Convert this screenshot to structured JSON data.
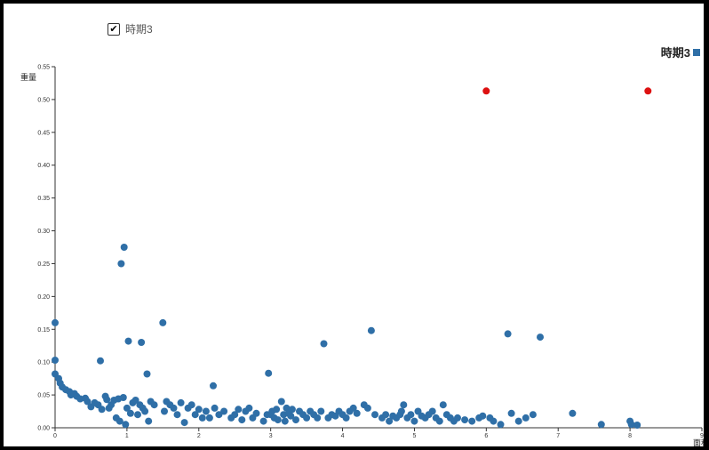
{
  "toggle": {
    "label": "時期3",
    "checked": true
  },
  "legend": {
    "label": "時期3"
  },
  "chart_data": {
    "type": "scatter",
    "ylabel": "重量",
    "xlabel": "面积",
    "xlim": [
      0,
      9
    ],
    "ylim": [
      0,
      0.55
    ],
    "x_ticks": [
      "0",
      "1",
      "2",
      "3",
      "4",
      "5",
      "6",
      "7",
      "8",
      "9"
    ],
    "y_ticks": [
      "0.00",
      "0.05",
      "0.10",
      "0.15",
      "0.20",
      "0.25",
      "0.30",
      "0.35",
      "0.40",
      "0.45",
      "0.50",
      "0.55"
    ],
    "series": [
      {
        "name": "時期3",
        "color": "#2f6fa7",
        "points": [
          [
            0.0,
            0.16
          ],
          [
            0.0,
            0.103
          ],
          [
            0.0,
            0.082
          ],
          [
            0.05,
            0.075
          ],
          [
            0.07,
            0.068
          ],
          [
            0.1,
            0.062
          ],
          [
            0.15,
            0.058
          ],
          [
            0.2,
            0.055
          ],
          [
            0.22,
            0.05
          ],
          [
            0.27,
            0.052
          ],
          [
            0.3,
            0.048
          ],
          [
            0.35,
            0.044
          ],
          [
            0.42,
            0.045
          ],
          [
            0.45,
            0.04
          ],
          [
            0.5,
            0.032
          ],
          [
            0.55,
            0.038
          ],
          [
            0.6,
            0.035
          ],
          [
            0.63,
            0.102
          ],
          [
            0.65,
            0.028
          ],
          [
            0.7,
            0.048
          ],
          [
            0.72,
            0.043
          ],
          [
            0.75,
            0.03
          ],
          [
            0.78,
            0.035
          ],
          [
            0.82,
            0.042
          ],
          [
            0.85,
            0.015
          ],
          [
            0.88,
            0.044
          ],
          [
            0.9,
            0.01
          ],
          [
            0.92,
            0.25
          ],
          [
            0.95,
            0.046
          ],
          [
            0.96,
            0.275
          ],
          [
            0.98,
            0.005
          ],
          [
            1.0,
            0.03
          ],
          [
            1.02,
            0.132
          ],
          [
            1.05,
            0.022
          ],
          [
            1.08,
            0.038
          ],
          [
            1.12,
            0.042
          ],
          [
            1.15,
            0.02
          ],
          [
            1.18,
            0.035
          ],
          [
            1.2,
            0.13
          ],
          [
            1.22,
            0.03
          ],
          [
            1.25,
            0.025
          ],
          [
            1.28,
            0.082
          ],
          [
            1.3,
            0.01
          ],
          [
            1.33,
            0.04
          ],
          [
            1.38,
            0.035
          ],
          [
            1.5,
            0.16
          ],
          [
            1.52,
            0.025
          ],
          [
            1.55,
            0.04
          ],
          [
            1.6,
            0.035
          ],
          [
            1.65,
            0.03
          ],
          [
            1.7,
            0.02
          ],
          [
            1.75,
            0.038
          ],
          [
            1.8,
            0.008
          ],
          [
            1.85,
            0.03
          ],
          [
            1.9,
            0.035
          ],
          [
            1.95,
            0.02
          ],
          [
            2.0,
            0.028
          ],
          [
            2.05,
            0.015
          ],
          [
            2.1,
            0.025
          ],
          [
            2.15,
            0.015
          ],
          [
            2.2,
            0.064
          ],
          [
            2.22,
            0.03
          ],
          [
            2.28,
            0.02
          ],
          [
            2.35,
            0.025
          ],
          [
            2.45,
            0.015
          ],
          [
            2.5,
            0.02
          ],
          [
            2.55,
            0.028
          ],
          [
            2.6,
            0.012
          ],
          [
            2.65,
            0.025
          ],
          [
            2.7,
            0.03
          ],
          [
            2.75,
            0.015
          ],
          [
            2.8,
            0.022
          ],
          [
            2.9,
            0.01
          ],
          [
            2.95,
            0.02
          ],
          [
            2.97,
            0.083
          ],
          [
            3.0,
            0.02
          ],
          [
            3.02,
            0.025
          ],
          [
            3.05,
            0.015
          ],
          [
            3.08,
            0.028
          ],
          [
            3.1,
            0.012
          ],
          [
            3.15,
            0.04
          ],
          [
            3.18,
            0.02
          ],
          [
            3.2,
            0.01
          ],
          [
            3.22,
            0.03
          ],
          [
            3.25,
            0.022
          ],
          [
            3.28,
            0.018
          ],
          [
            3.3,
            0.028
          ],
          [
            3.35,
            0.012
          ],
          [
            3.4,
            0.025
          ],
          [
            3.45,
            0.02
          ],
          [
            3.5,
            0.015
          ],
          [
            3.55,
            0.025
          ],
          [
            3.6,
            0.02
          ],
          [
            3.65,
            0.015
          ],
          [
            3.7,
            0.025
          ],
          [
            3.74,
            0.128
          ],
          [
            3.8,
            0.015
          ],
          [
            3.85,
            0.02
          ],
          [
            3.9,
            0.018
          ],
          [
            3.95,
            0.025
          ],
          [
            4.0,
            0.02
          ],
          [
            4.05,
            0.015
          ],
          [
            4.1,
            0.025
          ],
          [
            4.15,
            0.03
          ],
          [
            4.2,
            0.022
          ],
          [
            4.3,
            0.035
          ],
          [
            4.35,
            0.03
          ],
          [
            4.4,
            0.148
          ],
          [
            4.45,
            0.02
          ],
          [
            4.55,
            0.015
          ],
          [
            4.6,
            0.02
          ],
          [
            4.65,
            0.01
          ],
          [
            4.7,
            0.018
          ],
          [
            4.75,
            0.015
          ],
          [
            4.8,
            0.02
          ],
          [
            4.82,
            0.025
          ],
          [
            4.85,
            0.035
          ],
          [
            4.9,
            0.015
          ],
          [
            4.95,
            0.02
          ],
          [
            5.0,
            0.01
          ],
          [
            5.05,
            0.025
          ],
          [
            5.1,
            0.018
          ],
          [
            5.15,
            0.015
          ],
          [
            5.2,
            0.02
          ],
          [
            5.25,
            0.025
          ],
          [
            5.3,
            0.015
          ],
          [
            5.35,
            0.01
          ],
          [
            5.4,
            0.035
          ],
          [
            5.45,
            0.02
          ],
          [
            5.5,
            0.015
          ],
          [
            5.55,
            0.01
          ],
          [
            5.6,
            0.015
          ],
          [
            5.7,
            0.012
          ],
          [
            5.8,
            0.01
          ],
          [
            5.9,
            0.015
          ],
          [
            5.95,
            0.018
          ],
          [
            6.05,
            0.015
          ],
          [
            6.1,
            0.01
          ],
          [
            6.2,
            0.005
          ],
          [
            6.3,
            0.143
          ],
          [
            6.35,
            0.022
          ],
          [
            6.45,
            0.01
          ],
          [
            6.55,
            0.015
          ],
          [
            6.65,
            0.02
          ],
          [
            6.75,
            0.138
          ],
          [
            7.2,
            0.022
          ],
          [
            7.6,
            0.005
          ],
          [
            8.0,
            0.01
          ],
          [
            8.02,
            0.005
          ],
          [
            8.1,
            0.004
          ]
        ]
      },
      {
        "name": "",
        "color": "#dd1111",
        "points": [
          [
            6.0,
            0.513
          ],
          [
            8.25,
            0.513
          ]
        ]
      }
    ]
  }
}
